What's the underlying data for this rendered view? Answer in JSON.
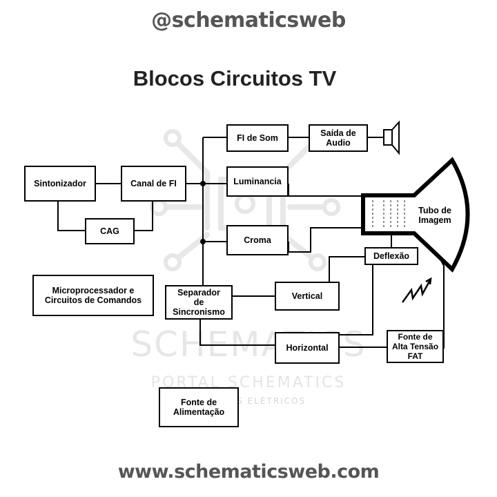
{
  "header": {
    "handle": "@schematicsweb"
  },
  "diagram": {
    "title": "Blocos Circuitos TV",
    "blocks": {
      "sintonizador": "Sintonizador",
      "canal_fi": "Canal de FI",
      "cag": "CAG",
      "fi_som": "FI de Som",
      "saida_audio": "Saída de\nAudio",
      "luminancia": "Luminancia",
      "croma": "Croma",
      "tubo_imagem": "Tubo de\nImagem",
      "deflexao": "Deflexão",
      "microprocessador": "Microprocessador e\nCircuitos de Comandos",
      "separador": "Separador\nde\nSincronismo",
      "vertical": "Vertical",
      "horizontal": "Horizontal",
      "fonte_alta_tensao": "Fonte de\nAlta Tensão\nFAT",
      "fonte_alimentacao": "Fonte de\nAlimentação"
    }
  },
  "watermark": {
    "brand": "SCHEMATICS",
    "portal": "PORTAL SCHEMATICS",
    "tagline": "SISTEMAS ELÉTRICOS"
  },
  "footer": {
    "url": "www.schematicsweb.com"
  },
  "colors": {
    "line": "#000000",
    "text_gray": "#555555",
    "watermark": "#e6e6e6"
  },
  "icons": [
    "speaker-icon",
    "lightning-bolt-icon",
    "crt-tube-icon",
    "circuit-watermark-icon"
  ]
}
